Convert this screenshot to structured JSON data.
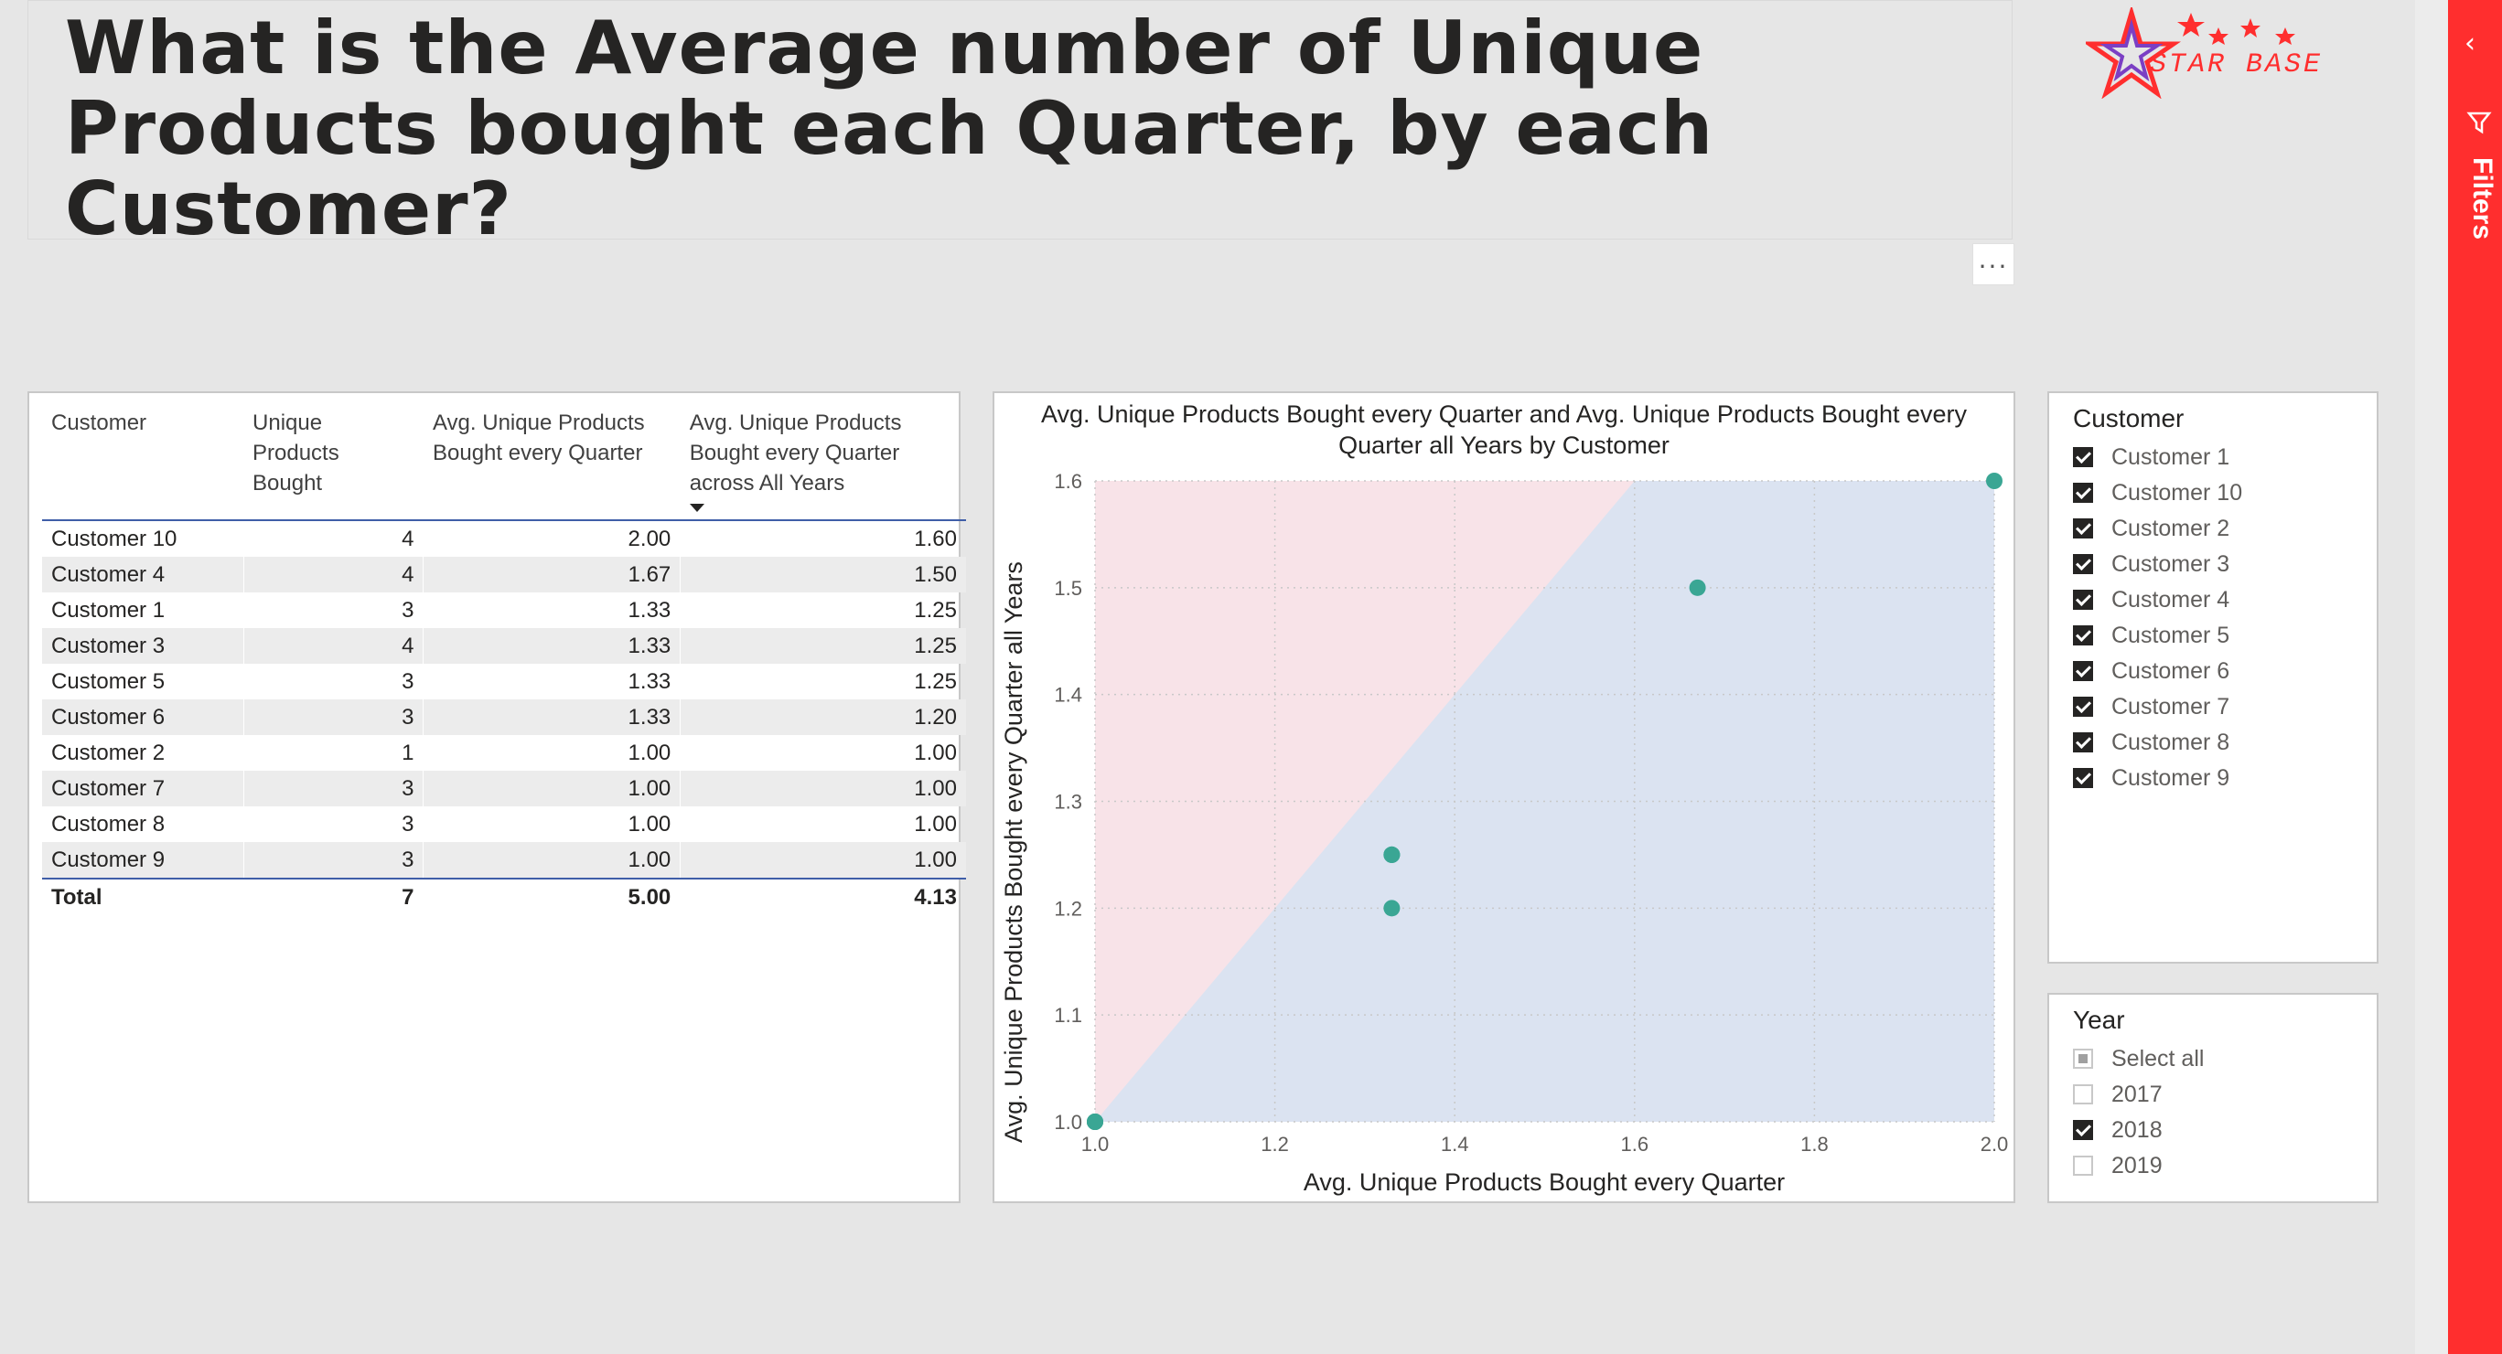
{
  "title": "What is the Average number of Unique Products bought each Quarter, by each Customer?",
  "logo_text": "STAR BASE",
  "more_options": "...",
  "filters_label": "Filters",
  "table": {
    "headers": [
      "Customer",
      "Unique Products Bought",
      "Avg. Unique Products Bought every Quarter",
      "Avg. Unique Products Bought every Quarter across All Years"
    ],
    "rows": [
      [
        "Customer 10",
        "4",
        "2.00",
        "1.60"
      ],
      [
        "Customer 4",
        "4",
        "1.67",
        "1.50"
      ],
      [
        "Customer 1",
        "3",
        "1.33",
        "1.25"
      ],
      [
        "Customer 3",
        "4",
        "1.33",
        "1.25"
      ],
      [
        "Customer 5",
        "3",
        "1.33",
        "1.25"
      ],
      [
        "Customer 6",
        "3",
        "1.33",
        "1.20"
      ],
      [
        "Customer 2",
        "1",
        "1.00",
        "1.00"
      ],
      [
        "Customer 7",
        "3",
        "1.00",
        "1.00"
      ],
      [
        "Customer 8",
        "3",
        "1.00",
        "1.00"
      ],
      [
        "Customer 9",
        "3",
        "1.00",
        "1.00"
      ]
    ],
    "total": [
      "Total",
      "7",
      "5.00",
      "4.13"
    ]
  },
  "chart_data": {
    "type": "scatter",
    "title": "Avg. Unique Products Bought every Quarter and Avg. Unique Products Bought every Quarter all Years by Customer",
    "xlabel": "Avg. Unique Products Bought every Quarter",
    "ylabel": "Avg. Unique Products Bought every Quarter all Years",
    "xlim": [
      1.0,
      2.0
    ],
    "ylim": [
      1.0,
      1.6
    ],
    "xticks": [
      "1.0",
      "1.2",
      "1.4",
      "1.6",
      "1.8",
      "2.0"
    ],
    "yticks": [
      "1.0",
      "1.1",
      "1.2",
      "1.3",
      "1.4",
      "1.5",
      "1.6"
    ],
    "points": [
      {
        "name": "Customer 10",
        "x": 2.0,
        "y": 1.6
      },
      {
        "name": "Customer 4",
        "x": 1.67,
        "y": 1.5
      },
      {
        "name": "Customer 1",
        "x": 1.33,
        "y": 1.25
      },
      {
        "name": "Customer 3",
        "x": 1.33,
        "y": 1.25
      },
      {
        "name": "Customer 5",
        "x": 1.33,
        "y": 1.25
      },
      {
        "name": "Customer 6",
        "x": 1.33,
        "y": 1.2
      },
      {
        "name": "Customer 2",
        "x": 1.0,
        "y": 1.0
      },
      {
        "name": "Customer 7",
        "x": 1.0,
        "y": 1.0
      },
      {
        "name": "Customer 8",
        "x": 1.0,
        "y": 1.0
      },
      {
        "name": "Customer 9",
        "x": 1.0,
        "y": 1.0
      }
    ],
    "reference_line": "y = x",
    "colors": {
      "points": "#3aa694",
      "upper_region": "#f8e3e8",
      "lower_region": "#dbe3f1"
    }
  },
  "customer_slicer": {
    "title": "Customer",
    "items": [
      {
        "label": "Customer 1",
        "checked": true
      },
      {
        "label": "Customer 10",
        "checked": true
      },
      {
        "label": "Customer 2",
        "checked": true
      },
      {
        "label": "Customer 3",
        "checked": true
      },
      {
        "label": "Customer 4",
        "checked": true
      },
      {
        "label": "Customer 5",
        "checked": true
      },
      {
        "label": "Customer 6",
        "checked": true
      },
      {
        "label": "Customer 7",
        "checked": true
      },
      {
        "label": "Customer 8",
        "checked": true
      },
      {
        "label": "Customer 9",
        "checked": true
      }
    ]
  },
  "year_slicer": {
    "title": "Year",
    "items": [
      {
        "label": "Select all",
        "state": "partial"
      },
      {
        "label": "2017",
        "state": "empty"
      },
      {
        "label": "2018",
        "state": "checked"
      },
      {
        "label": "2019",
        "state": "empty"
      }
    ]
  }
}
